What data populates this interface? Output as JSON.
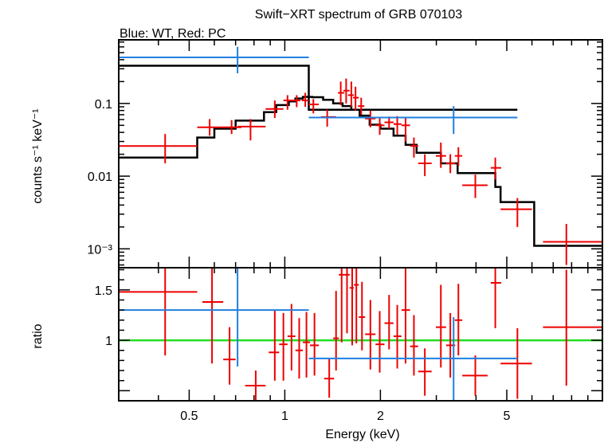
{
  "chart_data": {
    "type": "scatter",
    "title": "Swift−XRT spectrum of GRB 070103",
    "subtitle": "Blue: WT, Red: PC",
    "xlabel": "Energy (keV)",
    "x_scale": "log",
    "xlim": [
      0.3,
      10
    ],
    "x_ticks": [
      {
        "value": 0.5,
        "label": "0.5"
      },
      {
        "value": 1,
        "label": "1"
      },
      {
        "value": 2,
        "label": "2"
      },
      {
        "value": 5,
        "label": "5"
      }
    ],
    "colors": {
      "pc": "#ee0000",
      "wt": "#1f7fe0",
      "model": "#000000",
      "unity": "#22dd22"
    },
    "panels": [
      {
        "id": "spectrum",
        "ylabel": "counts s⁻¹ keV⁻¹",
        "y_scale": "log",
        "ylim": [
          0.00055,
          0.75
        ],
        "y_ticks": [
          {
            "value": 0.1,
            "label": "0.1"
          },
          {
            "value": 0.01,
            "label": "0.01"
          },
          {
            "value": 0.001,
            "label": "10⁻³"
          }
        ],
        "series": [
          {
            "key": "pc",
            "points": [
              {
                "x": 0.42,
                "xlo": 0.3,
                "xhi": 0.53,
                "y": 0.026,
                "ylo": 0.015,
                "yhi": 0.038
              },
              {
                "x": 0.58,
                "xlo": 0.53,
                "xhi": 0.64,
                "y": 0.047,
                "ylo": 0.036,
                "yhi": 0.061
              },
              {
                "x": 0.68,
                "xlo": 0.64,
                "xhi": 0.73,
                "y": 0.047,
                "ylo": 0.038,
                "yhi": 0.059
              },
              {
                "x": 0.78,
                "xlo": 0.71,
                "xhi": 0.87,
                "y": 0.048,
                "ylo": 0.031,
                "yhi": 0.061
              },
              {
                "x": 0.93,
                "xlo": 0.87,
                "xhi": 0.99,
                "y": 0.084,
                "ylo": 0.063,
                "yhi": 0.11
              },
              {
                "x": 1.02,
                "xlo": 0.99,
                "xhi": 1.06,
                "y": 0.11,
                "ylo": 0.082,
                "yhi": 0.13
              },
              {
                "x": 1.09,
                "xlo": 1.06,
                "xhi": 1.12,
                "y": 0.11,
                "ylo": 0.089,
                "yhi": 0.13
              },
              {
                "x": 1.16,
                "xlo": 1.13,
                "xhi": 1.19,
                "y": 0.11,
                "ylo": 0.09,
                "yhi": 0.14
              },
              {
                "x": 1.23,
                "xlo": 1.19,
                "xhi": 1.28,
                "y": 0.097,
                "ylo": 0.073,
                "yhi": 0.115
              },
              {
                "x": 1.36,
                "xlo": 1.3,
                "xhi": 1.45,
                "y": 0.065,
                "ylo": 0.048,
                "yhi": 0.082
              },
              {
                "x": 1.5,
                "xlo": 1.47,
                "xhi": 1.54,
                "y": 0.14,
                "ylo": 0.095,
                "yhi": 0.2
              },
              {
                "x": 1.56,
                "xlo": 1.53,
                "xhi": 1.6,
                "y": 0.15,
                "ylo": 0.1,
                "yhi": 0.22
              },
              {
                "x": 1.62,
                "xlo": 1.58,
                "xhi": 1.65,
                "y": 0.13,
                "ylo": 0.09,
                "yhi": 0.2
              },
              {
                "x": 1.67,
                "xlo": 1.64,
                "xhi": 1.71,
                "y": 0.12,
                "ylo": 0.08,
                "yhi": 0.17
              },
              {
                "x": 1.74,
                "xlo": 1.7,
                "xhi": 1.78,
                "y": 0.092,
                "ylo": 0.07,
                "yhi": 0.12
              },
              {
                "x": 1.86,
                "xlo": 1.79,
                "xhi": 1.93,
                "y": 0.062,
                "ylo": 0.047,
                "yhi": 0.08
              },
              {
                "x": 1.99,
                "xlo": 1.93,
                "xhi": 2.06,
                "y": 0.05,
                "ylo": 0.037,
                "yhi": 0.065
              },
              {
                "x": 2.13,
                "xlo": 2.06,
                "xhi": 2.2,
                "y": 0.055,
                "ylo": 0.045,
                "yhi": 0.066
              },
              {
                "x": 2.26,
                "xlo": 2.2,
                "xhi": 2.33,
                "y": 0.052,
                "ylo": 0.037,
                "yhi": 0.067
              },
              {
                "x": 2.4,
                "xlo": 2.33,
                "xhi": 2.48,
                "y": 0.05,
                "ylo": 0.03,
                "yhi": 0.064
              },
              {
                "x": 2.55,
                "xlo": 2.48,
                "xhi": 2.63,
                "y": 0.026,
                "ylo": 0.018,
                "yhi": 0.034
              },
              {
                "x": 2.76,
                "xlo": 2.63,
                "xhi": 2.9,
                "y": 0.015,
                "ylo": 0.01,
                "yhi": 0.02
              },
              {
                "x": 3.1,
                "xlo": 2.99,
                "xhi": 3.22,
                "y": 0.019,
                "ylo": 0.013,
                "yhi": 0.029
              },
              {
                "x": 3.32,
                "xlo": 3.22,
                "xhi": 3.44,
                "y": 0.015,
                "ylo": 0.011,
                "yhi": 0.02
              },
              {
                "x": 3.52,
                "xlo": 3.43,
                "xhi": 3.62,
                "y": 0.019,
                "ylo": 0.014,
                "yhi": 0.025
              },
              {
                "x": 3.98,
                "xlo": 3.62,
                "xhi": 4.35,
                "y": 0.0075,
                "ylo": 0.005,
                "yhi": 0.0105
              },
              {
                "x": 4.6,
                "xlo": 4.45,
                "xhi": 4.8,
                "y": 0.013,
                "ylo": 0.009,
                "yhi": 0.018
              },
              {
                "x": 5.4,
                "xlo": 4.78,
                "xhi": 6.0,
                "y": 0.0035,
                "ylo": 0.002,
                "yhi": 0.005
              },
              {
                "x": 7.7,
                "xlo": 6.5,
                "xhi": 10,
                "y": 0.00125,
                "ylo": 0.0006,
                "yhi": 0.0022
              }
            ]
          },
          {
            "key": "wt",
            "points": [
              {
                "x": 0.71,
                "xlo": 0.3,
                "xhi": 1.19,
                "y": 0.43,
                "ylo": 0.26,
                "yhi": 0.6
              },
              {
                "x": 3.4,
                "xlo": 1.19,
                "xhi": 5.4,
                "y": 0.064,
                "ylo": 0.038,
                "yhi": 0.092
              }
            ]
          }
        ],
        "models": [
          {
            "key": "pc",
            "steps": [
              {
                "xlo": 0.3,
                "xhi": 0.53,
                "y": 0.018
              },
              {
                "xlo": 0.53,
                "xhi": 0.6,
                "y": 0.034
              },
              {
                "xlo": 0.6,
                "xhi": 0.7,
                "y": 0.045
              },
              {
                "xlo": 0.7,
                "xhi": 0.86,
                "y": 0.058
              },
              {
                "xlo": 0.86,
                "xhi": 0.94,
                "y": 0.076
              },
              {
                "xlo": 0.94,
                "xhi": 1.03,
                "y": 0.095
              },
              {
                "xlo": 1.03,
                "xhi": 1.08,
                "y": 0.107
              },
              {
                "xlo": 1.08,
                "xhi": 1.14,
                "y": 0.117
              },
              {
                "xlo": 1.14,
                "xhi": 1.22,
                "y": 0.123
              },
              {
                "xlo": 1.22,
                "xhi": 1.32,
                "y": 0.122
              },
              {
                "xlo": 1.32,
                "xhi": 1.42,
                "y": 0.112
              },
              {
                "xlo": 1.42,
                "xhi": 1.52,
                "y": 0.1
              },
              {
                "xlo": 1.52,
                "xhi": 1.62,
                "y": 0.092
              },
              {
                "xlo": 1.62,
                "xhi": 1.72,
                "y": 0.082
              },
              {
                "xlo": 1.72,
                "xhi": 1.85,
                "y": 0.068
              },
              {
                "xlo": 1.85,
                "xhi": 2.0,
                "y": 0.051
              },
              {
                "xlo": 2.0,
                "xhi": 2.2,
                "y": 0.045
              },
              {
                "xlo": 2.2,
                "xhi": 2.4,
                "y": 0.036
              },
              {
                "xlo": 2.4,
                "xhi": 2.6,
                "y": 0.027
              },
              {
                "xlo": 2.6,
                "xhi": 3.1,
                "y": 0.021
              },
              {
                "xlo": 3.1,
                "xhi": 3.5,
                "y": 0.015
              },
              {
                "xlo": 3.5,
                "xhi": 4.6,
                "y": 0.011
              },
              {
                "xlo": 4.6,
                "xhi": 4.78,
                "y": 0.0071
              },
              {
                "xlo": 4.78,
                "xhi": 6.1,
                "y": 0.0044
              },
              {
                "xlo": 6.1,
                "xhi": 10,
                "y": 0.0011
              }
            ]
          },
          {
            "key": "wt",
            "steps": [
              {
                "xlo": 0.3,
                "xhi": 1.19,
                "y": 0.33
              },
              {
                "xlo": 1.19,
                "xhi": 5.4,
                "y": 0.082
              }
            ]
          }
        ]
      },
      {
        "id": "ratio",
        "ylabel": "ratio",
        "y_scale": "linear",
        "ylim": [
          0.4,
          1.72
        ],
        "y_ticks": [
          {
            "value": 1,
            "label": "1"
          },
          {
            "value": 1.5,
            "label": "1.5"
          }
        ],
        "reference_line": 1,
        "series": [
          {
            "key": "pc",
            "points": [
              {
                "x": 0.42,
                "xlo": 0.3,
                "xhi": 0.53,
                "y": 1.48,
                "ylo": 0.85,
                "yhi": 2.0
              },
              {
                "x": 0.59,
                "xlo": 0.55,
                "xhi": 0.64,
                "y": 1.38,
                "ylo": 0.77,
                "yhi": 2.0
              },
              {
                "x": 0.67,
                "xlo": 0.64,
                "xhi": 0.7,
                "y": 0.81,
                "ylo": 0.56,
                "yhi": 1.13
              },
              {
                "x": 0.81,
                "xlo": 0.75,
                "xhi": 0.87,
                "y": 0.55,
                "ylo": 0.4,
                "yhi": 0.7
              },
              {
                "x": 0.93,
                "xlo": 0.89,
                "xhi": 0.96,
                "y": 0.88,
                "ylo": 0.6,
                "yhi": 1.3
              },
              {
                "x": 0.99,
                "xlo": 0.96,
                "xhi": 1.02,
                "y": 0.96,
                "ylo": 0.6,
                "yhi": 1.27
              },
              {
                "x": 1.05,
                "xlo": 1.02,
                "xhi": 1.08,
                "y": 1.04,
                "ylo": 0.7,
                "yhi": 1.36
              },
              {
                "x": 1.11,
                "xlo": 1.08,
                "xhi": 1.14,
                "y": 0.9,
                "ylo": 0.62,
                "yhi": 1.22
              },
              {
                "x": 1.17,
                "xlo": 1.14,
                "xhi": 1.2,
                "y": 0.98,
                "ylo": 0.63,
                "yhi": 1.28
              },
              {
                "x": 1.24,
                "xlo": 1.2,
                "xhi": 1.28,
                "y": 0.95,
                "ylo": 0.65,
                "yhi": 1.27
              },
              {
                "x": 1.38,
                "xlo": 1.33,
                "xhi": 1.43,
                "y": 0.62,
                "ylo": 0.43,
                "yhi": 0.82
              },
              {
                "x": 1.45,
                "xlo": 1.42,
                "xhi": 1.48,
                "y": 1.02,
                "ylo": 0.7,
                "yhi": 1.49
              },
              {
                "x": 1.51,
                "xlo": 1.48,
                "xhi": 1.54,
                "y": 1.65,
                "ylo": 0.98,
                "yhi": 2.0
              },
              {
                "x": 1.57,
                "xlo": 1.54,
                "xhi": 1.6,
                "y": 1.65,
                "ylo": 1.07,
                "yhi": 2.0
              },
              {
                "x": 1.63,
                "xlo": 1.6,
                "xhi": 1.65,
                "y": 1.52,
                "ylo": 0.95,
                "yhi": 2.0
              },
              {
                "x": 1.68,
                "xlo": 1.65,
                "xhi": 1.71,
                "y": 1.55,
                "ylo": 0.97,
                "yhi": 2.0
              },
              {
                "x": 1.75,
                "xlo": 1.71,
                "xhi": 1.79,
                "y": 1.23,
                "ylo": 0.9,
                "yhi": 1.58
              },
              {
                "x": 1.86,
                "xlo": 1.79,
                "xhi": 1.93,
                "y": 1.06,
                "ylo": 0.71,
                "yhi": 1.4
              },
              {
                "x": 1.99,
                "xlo": 1.93,
                "xhi": 2.06,
                "y": 0.96,
                "ylo": 0.68,
                "yhi": 1.29
              },
              {
                "x": 2.13,
                "xlo": 2.06,
                "xhi": 2.2,
                "y": 1.17,
                "ylo": 0.91,
                "yhi": 1.45
              },
              {
                "x": 2.26,
                "xlo": 2.2,
                "xhi": 2.33,
                "y": 1.04,
                "ylo": 0.72,
                "yhi": 1.35
              },
              {
                "x": 2.4,
                "xlo": 2.33,
                "xhi": 2.48,
                "y": 1.3,
                "ylo": 0.77,
                "yhi": 1.8
              },
              {
                "x": 2.55,
                "xlo": 2.48,
                "xhi": 2.63,
                "y": 0.94,
                "ylo": 0.65,
                "yhi": 1.25
              },
              {
                "x": 2.76,
                "xlo": 2.63,
                "xhi": 2.9,
                "y": 0.69,
                "ylo": 0.45,
                "yhi": 0.92
              },
              {
                "x": 3.1,
                "xlo": 2.99,
                "xhi": 3.22,
                "y": 1.13,
                "ylo": 0.73,
                "yhi": 1.55
              },
              {
                "x": 3.32,
                "xlo": 3.22,
                "xhi": 3.44,
                "y": 0.95,
                "ylo": 0.63,
                "yhi": 1.27
              },
              {
                "x": 3.52,
                "xlo": 3.43,
                "xhi": 3.62,
                "y": 1.2,
                "ylo": 0.85,
                "yhi": 1.56
              },
              {
                "x": 3.98,
                "xlo": 3.62,
                "xhi": 4.35,
                "y": 0.65,
                "ylo": 0.45,
                "yhi": 0.85
              },
              {
                "x": 4.6,
                "xlo": 4.45,
                "xhi": 4.8,
                "y": 1.57,
                "ylo": 1.12,
                "yhi": 2.0
              },
              {
                "x": 5.4,
                "xlo": 4.78,
                "xhi": 6.0,
                "y": 0.77,
                "ylo": 0.42,
                "yhi": 1.12
              },
              {
                "x": 7.7,
                "xlo": 6.5,
                "xhi": 10,
                "y": 1.13,
                "ylo": 0.55,
                "yhi": 1.7
              }
            ]
          },
          {
            "key": "wt",
            "points": [
              {
                "x": 0.71,
                "xlo": 0.3,
                "xhi": 1.19,
                "y": 1.3,
                "ylo": 0.74,
                "yhi": 1.85
              },
              {
                "x": 3.4,
                "xlo": 1.19,
                "xhi": 5.4,
                "y": 0.82,
                "ylo": 0.4,
                "yhi": 1.23
              }
            ]
          }
        ]
      }
    ]
  }
}
